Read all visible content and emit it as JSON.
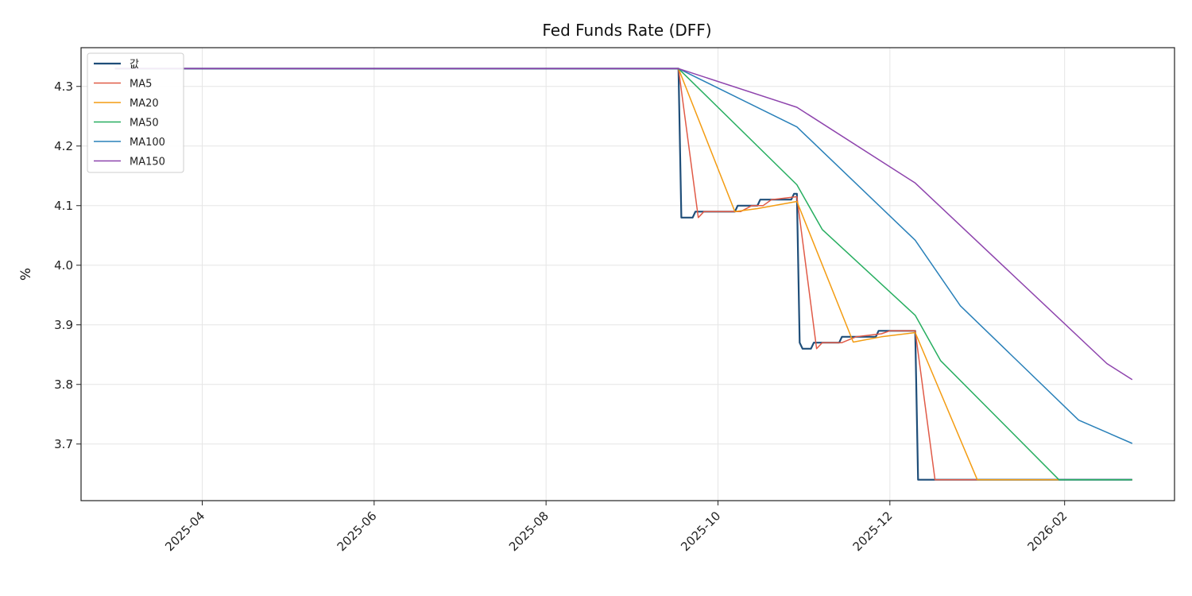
{
  "chart_data": {
    "type": "line",
    "title": "Fed Funds Rate (DFF)",
    "xlabel": "",
    "ylabel": "%",
    "x_tick_labels": [
      "2025-04",
      "2025-06",
      "2025-08",
      "2025-10",
      "2025-12",
      "2026-02"
    ],
    "y_tick_labels": [
      "3.7",
      "3.8",
      "3.9",
      "4.0",
      "4.1",
      "4.2",
      "4.3"
    ],
    "xlim": [
      "2025-02-17",
      "2026-03-12"
    ],
    "ylim": [
      3.605,
      4.365
    ],
    "grid": true,
    "legend_placement": "top-left",
    "series": [
      {
        "name": "값",
        "color": "#1f4e79",
        "width": 2.2,
        "points": [
          [
            "2025-03-01",
            4.33
          ],
          [
            "2025-09-17",
            4.33
          ],
          [
            "2025-09-18",
            4.08
          ],
          [
            "2025-09-22",
            4.08
          ],
          [
            "2025-09-23",
            4.09
          ],
          [
            "2025-10-07",
            4.09
          ],
          [
            "2025-10-08",
            4.1
          ],
          [
            "2025-10-15",
            4.1
          ],
          [
            "2025-10-16",
            4.11
          ],
          [
            "2025-10-27",
            4.11
          ],
          [
            "2025-10-28",
            4.12
          ],
          [
            "2025-10-29",
            4.12
          ],
          [
            "2025-10-30",
            3.87
          ],
          [
            "2025-10-31",
            3.86
          ],
          [
            "2025-11-03",
            3.86
          ],
          [
            "2025-11-04",
            3.87
          ],
          [
            "2025-11-13",
            3.87
          ],
          [
            "2025-11-14",
            3.88
          ],
          [
            "2025-11-26",
            3.88
          ],
          [
            "2025-11-27",
            3.89
          ],
          [
            "2025-12-10",
            3.89
          ],
          [
            "2025-12-11",
            3.64
          ],
          [
            "2026-02-25",
            3.64
          ]
        ]
      },
      {
        "name": "MA5",
        "color": "#e05a47",
        "width": 1.5,
        "points": [
          [
            "2025-03-01",
            4.33
          ],
          [
            "2025-09-17",
            4.33
          ],
          [
            "2025-09-24",
            4.08
          ],
          [
            "2025-09-26",
            4.09
          ],
          [
            "2025-10-09",
            4.09
          ],
          [
            "2025-10-13",
            4.1
          ],
          [
            "2025-10-17",
            4.1
          ],
          [
            "2025-10-20",
            4.11
          ],
          [
            "2025-10-29",
            4.115
          ],
          [
            "2025-11-05",
            3.86
          ],
          [
            "2025-11-07",
            3.87
          ],
          [
            "2025-11-14",
            3.87
          ],
          [
            "2025-11-19",
            3.88
          ],
          [
            "2025-11-28",
            3.885
          ],
          [
            "2025-12-01",
            3.89
          ],
          [
            "2025-12-10",
            3.89
          ],
          [
            "2025-12-17",
            3.64
          ],
          [
            "2026-02-25",
            3.64
          ]
        ]
      },
      {
        "name": "MA20",
        "color": "#f39c12",
        "width": 1.5,
        "points": [
          [
            "2025-03-01",
            4.33
          ],
          [
            "2025-09-17",
            4.33
          ],
          [
            "2025-10-07",
            4.09
          ],
          [
            "2025-10-15",
            4.095
          ],
          [
            "2025-10-29",
            4.107
          ],
          [
            "2025-11-18",
            3.871
          ],
          [
            "2025-11-28",
            3.88
          ],
          [
            "2025-12-10",
            3.887
          ],
          [
            "2026-01-01",
            3.64
          ],
          [
            "2026-02-25",
            3.64
          ]
        ]
      },
      {
        "name": "MA50",
        "color": "#27ae60",
        "width": 1.5,
        "points": [
          [
            "2025-03-01",
            4.33
          ],
          [
            "2025-09-17",
            4.33
          ],
          [
            "2025-10-29",
            4.135
          ],
          [
            "2025-11-07",
            4.06
          ],
          [
            "2025-12-10",
            3.916
          ],
          [
            "2025-12-19",
            3.84
          ],
          [
            "2026-01-30",
            3.64
          ],
          [
            "2026-02-25",
            3.64
          ]
        ]
      },
      {
        "name": "MA100",
        "color": "#2980b9",
        "width": 1.5,
        "points": [
          [
            "2025-03-01",
            4.33
          ],
          [
            "2025-09-17",
            4.33
          ],
          [
            "2025-10-29",
            4.232
          ],
          [
            "2025-12-10",
            4.042
          ],
          [
            "2025-12-26",
            3.932
          ],
          [
            "2026-02-06",
            3.74
          ],
          [
            "2026-02-25",
            3.701
          ]
        ]
      },
      {
        "name": "MA150",
        "color": "#8e44ad",
        "width": 1.5,
        "points": [
          [
            "2025-03-01",
            4.33
          ],
          [
            "2025-09-17",
            4.33
          ],
          [
            "2025-10-29",
            4.265
          ],
          [
            "2025-12-10",
            4.138
          ],
          [
            "2026-02-16",
            3.835
          ],
          [
            "2026-02-25",
            3.808
          ]
        ]
      }
    ]
  }
}
